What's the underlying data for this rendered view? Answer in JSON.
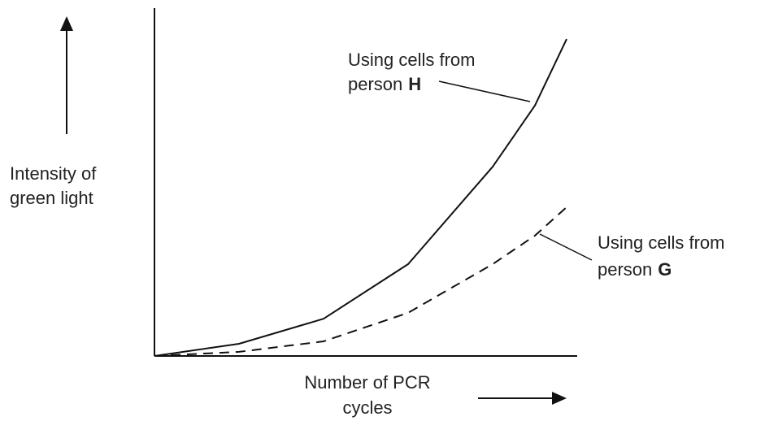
{
  "chart_data": {
    "type": "line",
    "y_label": [
      "Intensity of",
      "green light"
    ],
    "x_label": [
      "Number of PCR",
      "cycles"
    ],
    "x": [
      0,
      20,
      40,
      60,
      80,
      90,
      97.5
    ],
    "xlim": [
      0,
      100
    ],
    "ylim": [
      0,
      100
    ],
    "series": [
      {
        "name_lines": [
          "Using cells from",
          "person"
        ],
        "name_emphasis": "H",
        "color": "#111111",
        "dash": false,
        "values": [
          0,
          3.5,
          10.7,
          26.4,
          54.4,
          72,
          91.1
        ]
      },
      {
        "name_lines": [
          "Using cells from",
          "person"
        ],
        "name_emphasis": "G",
        "color": "#111111",
        "dash": true,
        "values": [
          0,
          1.2,
          4.2,
          12.4,
          26.4,
          34.6,
          42.8
        ]
      }
    ]
  }
}
